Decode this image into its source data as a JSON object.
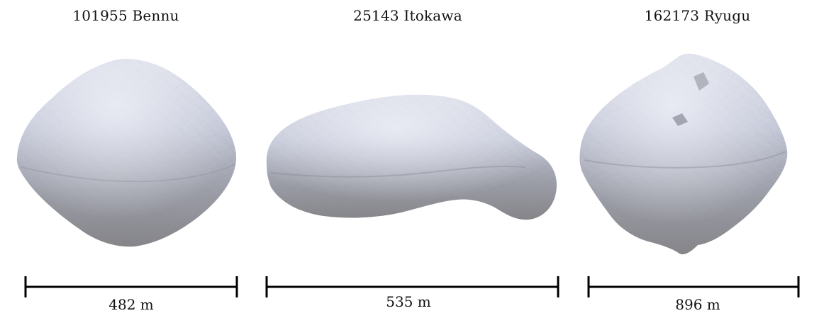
{
  "asteroids": [
    {
      "name": "101955 Bennu",
      "size": "482 m"
    },
    {
      "name": "25143 Itokawa",
      "size": "535 m"
    },
    {
      "name": "162173 Ryugu",
      "size": "896 m"
    }
  ]
}
